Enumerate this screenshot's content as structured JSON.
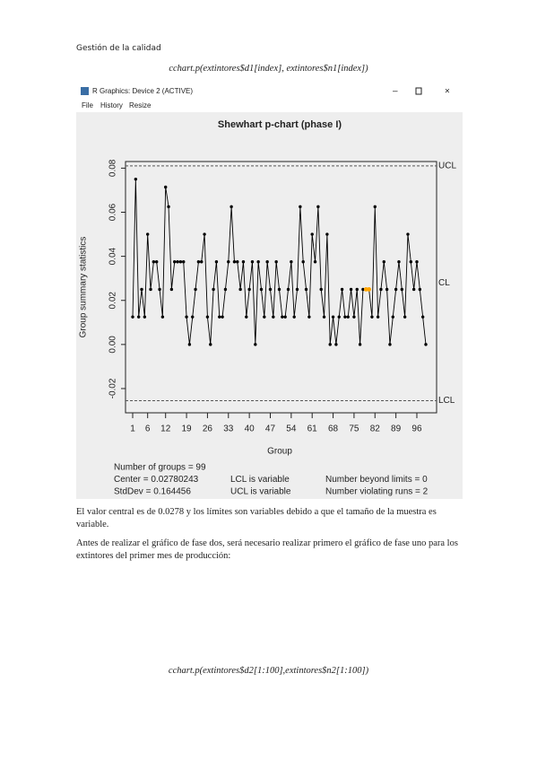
{
  "header": "Gestión de la calidad",
  "code_1": "cchart.p(extintores$d1[index], extintores$n1[index])",
  "window": {
    "title": "R Graphics: Device 2 (ACTIVE)",
    "menu": [
      "File",
      "History",
      "Resize"
    ]
  },
  "chart_data": {
    "type": "line",
    "title": "Shewhart p-chart (phase I)",
    "x_label": "Group",
    "y_label": "Group summary statistics",
    "x": [
      1,
      2,
      3,
      4,
      5,
      6,
      7,
      8,
      9,
      10,
      11,
      12,
      13,
      14,
      15,
      16,
      17,
      18,
      19,
      20,
      21,
      22,
      23,
      24,
      25,
      26,
      27,
      28,
      29,
      30,
      31,
      32,
      33,
      34,
      35,
      36,
      37,
      38,
      39,
      40,
      41,
      42,
      43,
      44,
      45,
      46,
      47,
      48,
      49,
      50,
      51,
      52,
      53,
      54,
      55,
      56,
      57,
      58,
      59,
      60,
      61,
      62,
      63,
      64,
      65,
      66,
      67,
      68,
      69,
      70,
      71,
      72,
      73,
      74,
      75,
      76,
      77,
      78,
      79,
      80,
      81,
      82,
      83,
      84,
      85,
      86,
      87,
      88,
      89,
      90,
      91,
      92,
      93,
      94,
      95,
      96,
      97,
      98,
      99
    ],
    "series": [
      {
        "name": "Group summary statistics",
        "color": "#000000",
        "values": [
          0.0125,
          0.075,
          0.0125,
          0.025,
          0.0125,
          0.05,
          0.025,
          0.0375,
          0.0375,
          0.025,
          0.0125,
          0.0714,
          0.0625,
          0.025,
          0.0375,
          0.0375,
          0.0375,
          0.0375,
          0.0125,
          0.0,
          0.0125,
          0.025,
          0.0375,
          0.0375,
          0.05,
          0.0125,
          0.0,
          0.025,
          0.0375,
          0.0125,
          0.0125,
          0.025,
          0.0375,
          0.0625,
          0.0375,
          0.0375,
          0.025,
          0.0375,
          0.0125,
          0.025,
          0.0375,
          0.0,
          0.0375,
          0.025,
          0.0125,
          0.0375,
          0.025,
          0.0125,
          0.0375,
          0.025,
          0.0125,
          0.0125,
          0.025,
          0.0375,
          0.0125,
          0.025,
          0.0625,
          0.0375,
          0.025,
          0.0125,
          0.05,
          0.0375,
          0.0625,
          0.025,
          0.0125,
          0.05,
          0.0,
          0.0125,
          0.0,
          0.0125,
          0.025,
          0.0125,
          0.0125,
          0.025,
          0.0125,
          0.025,
          0.0,
          0.025,
          0.025,
          0.025,
          0.0125,
          0.0625,
          0.0125,
          0.025,
          0.0375,
          0.025,
          0.0,
          0.0125,
          0.025,
          0.0375,
          0.025,
          0.0125,
          0.05,
          0.0375,
          0.025,
          0.0375,
          0.025,
          0.0125,
          0.0
        ]
      }
    ],
    "violating_points": [
      79,
      80
    ],
    "violation_color": "#ffa500",
    "center": 0.02780243,
    "ucl": 0.081,
    "lcl": -0.0255,
    "limit_labels": [
      "UCL",
      "CL",
      "LCL"
    ],
    "xlim": [
      -1.4,
      102.6
    ],
    "ylim": [
      -0.031,
      0.083
    ],
    "xticks": [
      1,
      6,
      12,
      19,
      26,
      33,
      40,
      47,
      54,
      61,
      68,
      75,
      82,
      89,
      96
    ],
    "yticks": [
      -0.02,
      {
        "value": 0,
        "label": "0.00"
      },
      0.02,
      0.04,
      0.06,
      0.08
    ],
    "stats": [
      [
        "Number of groups = 99"
      ],
      [
        "Center = 0.02780243",
        "LCL is variable",
        "Number beyond limits = 0"
      ],
      [
        "StdDev = 0.164456",
        "UCL is variable",
        "Number violating runs = 2"
      ]
    ]
  },
  "paragraphs": [
    "El valor central es de 0.0278 y los límites son variables debido a que el tamaño de la muestra es variable.",
    "Antes de realizar el gráfico de fase dos, será necesario realizar primero el gráfico de fase uno para los extintores del primer mes de producción:"
  ],
  "code_2": "cchart.p(extintores$d2[1:100],extintores$n2[1:100])"
}
